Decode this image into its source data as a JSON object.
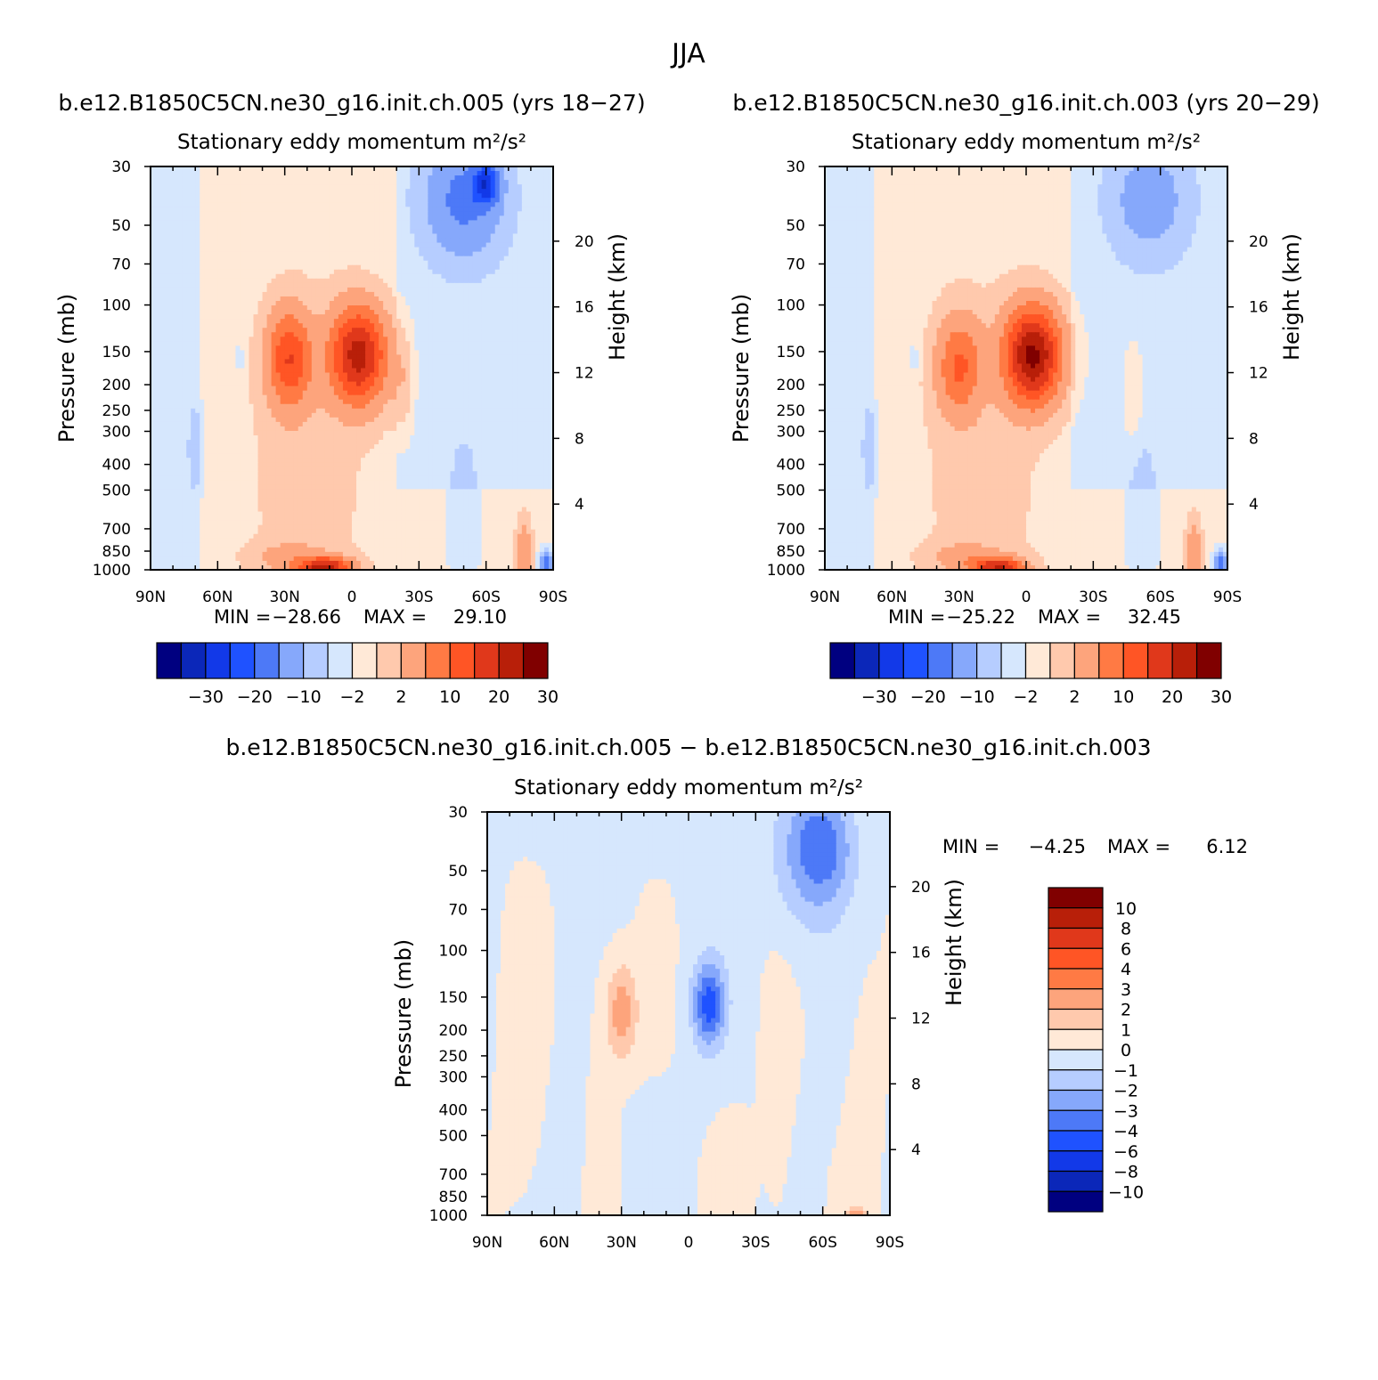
{
  "figure": {
    "title": "JJA"
  },
  "chart_data": [
    {
      "type": "heatmap",
      "panel": "case1",
      "case_title": "b.e12.B1850C5CN.ne30_g16.init.ch.005 (yrs 18-27)",
      "subtitle": "Stationary eddy momentum",
      "units": "m²/s²",
      "ylabel": "Pressure (mb)",
      "ylabel_right": "Height (km)",
      "x_ticks": [
        "90N",
        "60N",
        "30N",
        "0",
        "30S",
        "60S",
        "90S"
      ],
      "y_ticks": [
        "30",
        "50",
        "70",
        "100",
        "150",
        "200",
        "250",
        "300",
        "400",
        "500",
        "700",
        "850",
        "1000"
      ],
      "y_ticks_right": [
        "20",
        "16",
        "12",
        "8",
        "4"
      ],
      "yscale": "log",
      "ylim": [
        1000,
        30
      ],
      "xlim": [
        90,
        -90
      ],
      "min_label": "MIN =",
      "min_value": "-28.66",
      "max_label": "MAX =",
      "max_value": "29.10",
      "colorbar_labels": [
        "-30",
        "-20",
        "-10",
        "-2",
        "2",
        "10",
        "20",
        "30"
      ],
      "features": [
        {
          "lat": 28,
          "p": 160,
          "value": 18,
          "sx": 7,
          "sy": 0.3
        },
        {
          "lat": -3,
          "p": 155,
          "value": 26,
          "sx": 9,
          "sy": 0.3
        },
        {
          "lat": 12,
          "p": 980,
          "value": 25,
          "sx": 8,
          "sy": 0.06
        },
        {
          "lat": 28,
          "p": 900,
          "value": 5,
          "sx": 12,
          "sy": 0.1
        },
        {
          "lat": -50,
          "p": 40,
          "value": -11,
          "sx": 12,
          "sy": 0.35
        },
        {
          "lat": -60,
          "p": 35,
          "value": -18,
          "sx": 4,
          "sy": 0.12
        },
        {
          "lat": -50,
          "p": 600,
          "value": -2.5,
          "sx": 5,
          "sy": 0.5
        },
        {
          "lat": 70,
          "p": 350,
          "value": -2.5,
          "sx": 3,
          "sy": 0.35
        },
        {
          "lat": 50,
          "p": 160,
          "value": -2.5,
          "sx": 1.5,
          "sy": 0.1
        },
        {
          "lat": -23,
          "p": 200,
          "value": 4,
          "sx": 3,
          "sy": 0.3
        },
        {
          "lat": 20,
          "p": 450,
          "value": 2.5,
          "sx": 20,
          "sy": 1.2
        },
        {
          "lat": -77,
          "p": 850,
          "value": 8,
          "sx": 2.5,
          "sy": 0.2
        },
        {
          "lat": -87,
          "p": 950,
          "value": -14,
          "sx": 2,
          "sy": 0.08
        }
      ]
    },
    {
      "type": "heatmap",
      "panel": "case2",
      "case_title": "b.e12.B1850C5CN.ne30_g16.init.ch.003 (yrs 20-29)",
      "subtitle": "Stationary eddy momentum",
      "units": "m²/s²",
      "ylabel": "Pressure (mb)",
      "ylabel_right": "Height (km)",
      "x_ticks": [
        "90N",
        "60N",
        "30N",
        "0",
        "30S",
        "60S",
        "90S"
      ],
      "y_ticks": [
        "30",
        "50",
        "70",
        "100",
        "150",
        "200",
        "250",
        "300",
        "400",
        "500",
        "700",
        "850",
        "1000"
      ],
      "y_ticks_right": [
        "20",
        "16",
        "12",
        "8",
        "4"
      ],
      "yscale": "log",
      "ylim": [
        1000,
        30
      ],
      "xlim": [
        90,
        -90
      ],
      "min_label": "MIN =",
      "min_value": "-25.22",
      "max_label": "MAX =",
      "max_value": "32.45",
      "colorbar_labels": [
        "-30",
        "-20",
        "-10",
        "-2",
        "2",
        "10",
        "20",
        "30"
      ],
      "features": [
        {
          "lat": 30,
          "p": 170,
          "value": 14,
          "sx": 7,
          "sy": 0.3
        },
        {
          "lat": -3,
          "p": 155,
          "value": 30,
          "sx": 9,
          "sy": 0.3
        },
        {
          "lat": 12,
          "p": 980,
          "value": 22,
          "sx": 8,
          "sy": 0.06
        },
        {
          "lat": 28,
          "p": 900,
          "value": 5,
          "sx": 12,
          "sy": 0.1
        },
        {
          "lat": -55,
          "p": 40,
          "value": -7,
          "sx": 12,
          "sy": 0.35
        },
        {
          "lat": -52,
          "p": 600,
          "value": -2.5,
          "sx": 5,
          "sy": 0.5
        },
        {
          "lat": 70,
          "p": 350,
          "value": -2.5,
          "sx": 3,
          "sy": 0.35
        },
        {
          "lat": 50,
          "p": 160,
          "value": -2.5,
          "sx": 1.5,
          "sy": 0.1
        },
        {
          "lat": -48,
          "p": 220,
          "value": 3,
          "sx": 3,
          "sy": 0.3
        },
        {
          "lat": 20,
          "p": 450,
          "value": 2.5,
          "sx": 20,
          "sy": 1.2
        },
        {
          "lat": -75,
          "p": 850,
          "value": 8,
          "sx": 2.5,
          "sy": 0.2
        },
        {
          "lat": -87,
          "p": 950,
          "value": -14,
          "sx": 2,
          "sy": 0.08
        }
      ]
    },
    {
      "type": "heatmap",
      "panel": "difference",
      "case_title": "b.e12.B1850C5CN.ne30_g16.init.ch.005 - b.e12.B1850C5CN.ne30_g16.init.ch.003",
      "subtitle": "Stationary eddy momentum",
      "units": "m²/s²",
      "ylabel": "Pressure (mb)",
      "ylabel_right": "Height (km)",
      "x_ticks": [
        "90N",
        "60N",
        "30N",
        "0",
        "30S",
        "60S",
        "90S"
      ],
      "y_ticks": [
        "30",
        "50",
        "70",
        "100",
        "150",
        "200",
        "250",
        "300",
        "400",
        "500",
        "700",
        "850",
        "1000"
      ],
      "y_ticks_right": [
        "20",
        "16",
        "12",
        "8",
        "4"
      ],
      "yscale": "log",
      "ylim": [
        1000,
        30
      ],
      "xlim": [
        90,
        -90
      ],
      "min_label": "MIN =",
      "min_value": "-4.25",
      "max_label": "MAX =",
      "max_value": "6.12",
      "colorbar_labels": [
        "10",
        "8",
        "6",
        "4",
        "3",
        "2",
        "1",
        "0",
        "-1",
        "-2",
        "-3",
        "-4",
        "-6",
        "-8",
        "-10"
      ],
      "features": [
        {
          "lat": 30,
          "p": 170,
          "value": 2.7,
          "sx": 5,
          "sy": 0.3
        },
        {
          "lat": -9,
          "p": 160,
          "value": -4.2,
          "sx": 5,
          "sy": 0.25
        },
        {
          "lat": -60,
          "p": 40,
          "value": -3,
          "sx": 10,
          "sy": 0.35
        },
        {
          "lat": -50,
          "p": 50,
          "value": -1.2,
          "sx": 12,
          "sy": 0.5
        },
        {
          "lat": 75,
          "p": 350,
          "value": 0.6,
          "sx": 8,
          "sy": 1.0
        },
        {
          "lat": 40,
          "p": 300,
          "value": 0.5,
          "sx": 6,
          "sy": 1.0
        },
        {
          "lat": -40,
          "p": 500,
          "value": 0.5,
          "sx": 5,
          "sy": 1.0
        },
        {
          "lat": -78,
          "p": 400,
          "value": 0.6,
          "sx": 6,
          "sy": 1.2
        },
        {
          "lat": 55,
          "p": 600,
          "value": -0.5,
          "sx": 6,
          "sy": 0.6
        },
        {
          "lat": -20,
          "p": 700,
          "value": 0.4,
          "sx": 8,
          "sy": 0.5
        },
        {
          "lat": -75,
          "p": 990,
          "value": 2.5,
          "sx": 3,
          "sy": 0.04
        }
      ]
    }
  ],
  "colormaps": {
    "cases": [
      "#000080",
      "#0b27b9",
      "#1239e8",
      "#1f52ff",
      "#4d79f7",
      "#86a8fb",
      "#b6cdff",
      "#d6e7fd",
      "#ffe9d7",
      "#ffc9ad",
      "#fda47c",
      "#ff7a44",
      "#ff5525",
      "#e0381b",
      "#b81f09",
      "#800000"
    ],
    "diff": [
      "#000080",
      "#0b27b9",
      "#1239e8",
      "#1f52ff",
      "#4d79f7",
      "#86a8fb",
      "#b6cdff",
      "#d6e7fd",
      "#ffe9d7",
      "#ffc9ad",
      "#fda47c",
      "#ff7a44",
      "#ff5525",
      "#e0381b",
      "#b81f09",
      "#800000"
    ]
  },
  "levels": {
    "cases": [
      -30,
      -25,
      -20,
      -15,
      -10,
      -5,
      -2,
      0,
      2,
      5,
      10,
      15,
      20,
      25,
      30
    ],
    "diff": [
      -10,
      -8,
      -6,
      -4,
      -3,
      -2,
      -1,
      0,
      1,
      2,
      3,
      4,
      6,
      8,
      10
    ]
  }
}
